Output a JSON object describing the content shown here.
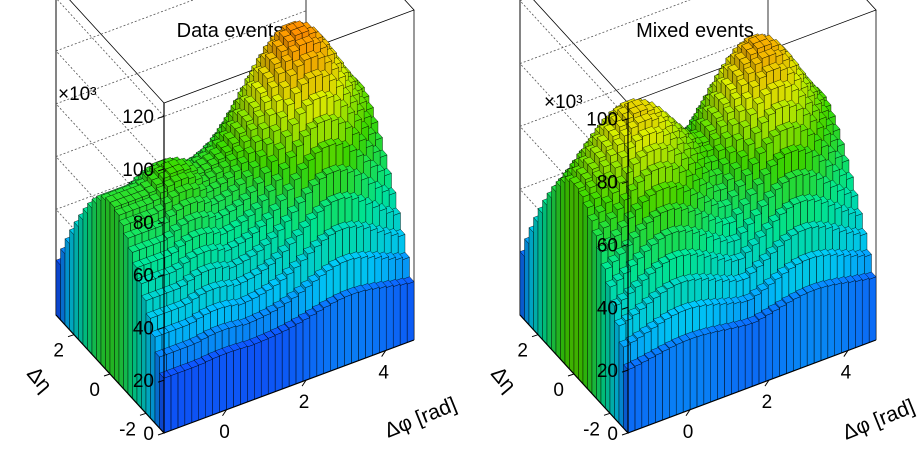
{
  "chart_data": [
    {
      "type": "lego",
      "title": "Data events",
      "xlabel": "Δφ [rad]",
      "ylabel": "Δη",
      "zlabel": "",
      "z_multiplier": "×10³",
      "xlim": [
        -1.5708,
        4.7124
      ],
      "ylim": [
        -3.0,
        3.0
      ],
      "zlim": [
        0,
        125000
      ],
      "x_ticks": [
        0,
        2,
        4
      ],
      "y_ticks": [
        -2,
        0,
        2
      ],
      "z_ticks": [
        0,
        20,
        40,
        60,
        80,
        100,
        120
      ],
      "grid": true,
      "palette": "rainbow",
      "n_phi_bins": 36,
      "n_eta_bins": 24,
      "surface": {
        "peak_value": 105000,
        "near_side_peak_x": 0.0,
        "away_side_peak_x": 3.1416,
        "near_side_value_at_eta0": 70000,
        "away_side_value_at_eta0": 105000,
        "value_at_eta_edge": 14000
      }
    },
    {
      "type": "lego",
      "title": "Mixed events",
      "xlabel": "Δφ [rad]",
      "ylabel": "Δη",
      "zlabel": "",
      "z_multiplier": "×10³",
      "xlim": [
        -1.5708,
        4.7124
      ],
      "ylim": [
        -3.0,
        3.0
      ],
      "zlim": [
        0,
        105000
      ],
      "x_ticks": [
        0,
        2,
        4
      ],
      "y_ticks": [
        -2,
        0,
        2
      ],
      "z_ticks": [
        0,
        20,
        40,
        60,
        80,
        100
      ],
      "grid": true,
      "palette": "rainbow",
      "n_phi_bins": 36,
      "n_eta_bins": 24,
      "surface": {
        "peak_value": 84000,
        "near_side_peak_x": 0.0,
        "away_side_peak_x": 3.1416,
        "near_side_value_at_eta0": 78000,
        "away_side_value_at_eta0": 84000,
        "value_at_eta_edge": 14000
      }
    }
  ]
}
